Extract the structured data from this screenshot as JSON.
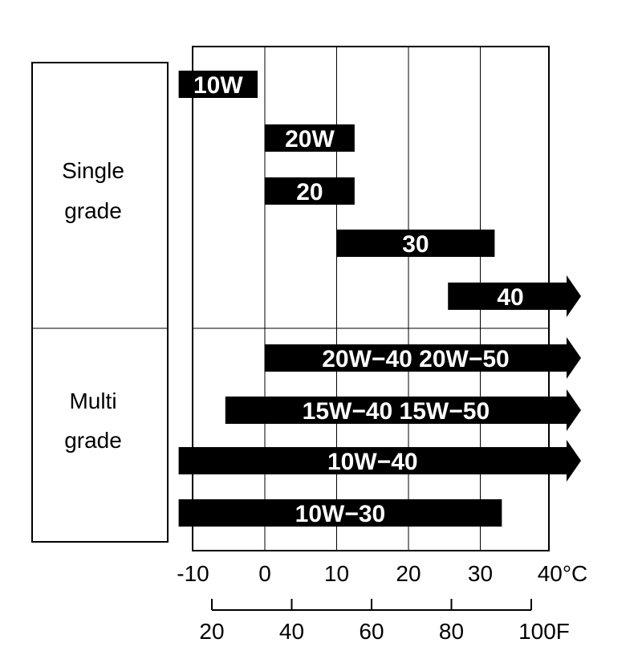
{
  "chart_data": {
    "type": "bar",
    "orientation": "horizontal-range",
    "x_celsius_ticks": [
      "-10",
      "0",
      "10",
      "20",
      "30",
      "40°C"
    ],
    "x_fahrenheit_ticks": [
      "20",
      "40",
      "60",
      "80",
      "100F"
    ],
    "xlim_celsius": [
      -10,
      40
    ],
    "xlim_fahrenheit": [
      20,
      100
    ],
    "grid": true,
    "groups": [
      {
        "label": "Single grade",
        "label_lines": [
          "Single",
          "grade"
        ]
      },
      {
        "label": "Multi grade",
        "label_lines": [
          "Multi",
          "grade"
        ]
      }
    ],
    "series": [
      {
        "label": "10W",
        "group": "Single grade",
        "x_start": -12,
        "x_end": -1,
        "extends_beyond": false
      },
      {
        "label": "20W",
        "group": "Single grade",
        "x_start": 0,
        "x_end": 12.5,
        "extends_beyond": false
      },
      {
        "label": "20",
        "group": "Single grade",
        "x_start": 0,
        "x_end": 12.5,
        "extends_beyond": false
      },
      {
        "label": "30",
        "group": "Single grade",
        "x_start": 10,
        "x_end": 32,
        "extends_beyond": false
      },
      {
        "label": "40",
        "group": "Single grade",
        "x_start": 25.5,
        "x_end": 40,
        "extends_beyond": true
      },
      {
        "label": "20W−40  20W−50",
        "group": "Multi grade",
        "x_start": 0,
        "x_end": 40,
        "extends_beyond": true
      },
      {
        "label": "15W−40  15W−50",
        "group": "Multi grade",
        "x_start": -5.5,
        "x_end": 40,
        "extends_beyond": true
      },
      {
        "label": "10W−40",
        "group": "Multi grade",
        "x_start": -12,
        "x_end": 40,
        "extends_beyond": true
      },
      {
        "label": "10W−30",
        "group": "Multi grade",
        "x_start": -12,
        "x_end": 33,
        "extends_beyond": false
      }
    ]
  }
}
